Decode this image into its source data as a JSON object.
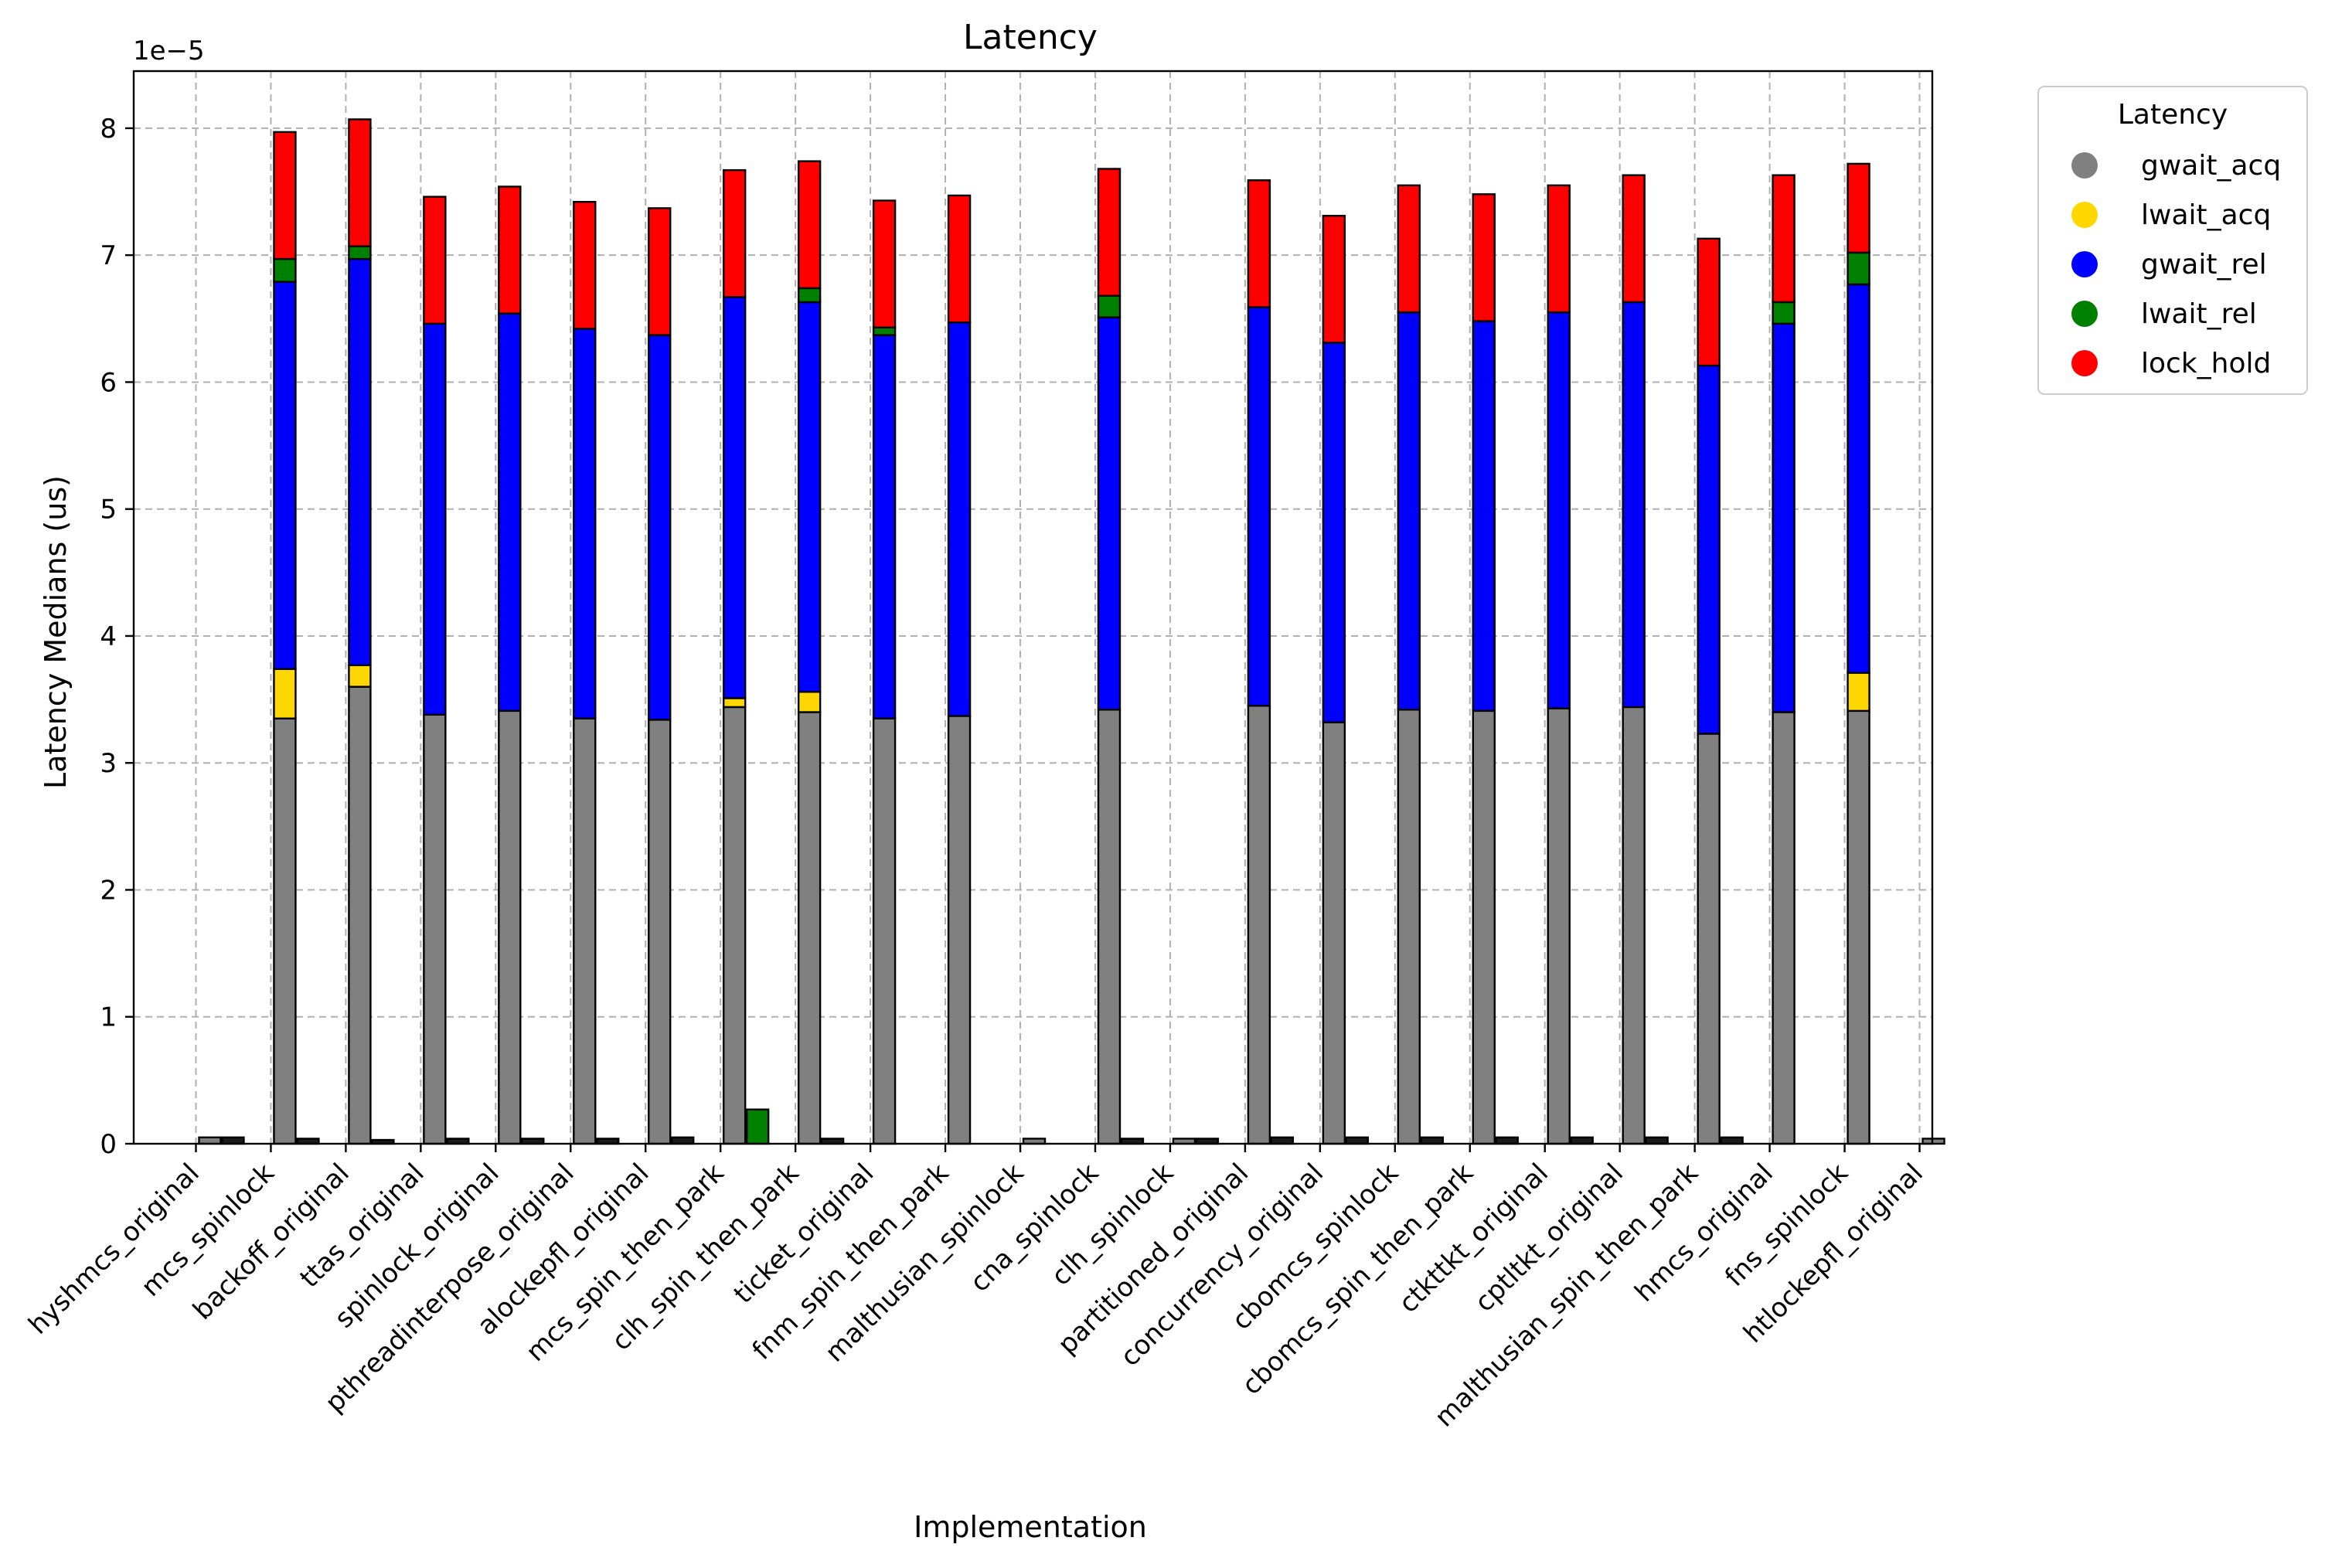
{
  "chart_data": {
    "type": "bar",
    "stacked": true,
    "title": "Latency",
    "xlabel": "Implementation",
    "ylabel": "Latency Medians (us)",
    "y_offset_text": "1e−5",
    "ylim": [
      0,
      8.45e-05
    ],
    "yticks": [
      0,
      1e-05,
      2e-05,
      3e-05,
      4e-05,
      5e-05,
      6e-05,
      7e-05,
      8e-05
    ],
    "ytick_labels": [
      "0",
      "1",
      "2",
      "3",
      "4",
      "5",
      "6",
      "7",
      "8"
    ],
    "grid": true,
    "legend": {
      "title": "Latency",
      "placement": "outside-top-right"
    },
    "categories": [
      "hyshmcs_original",
      "mcs_spinlock",
      "backoff_original",
      "ttas_original",
      "spinlock_original",
      "pthreadinterpose_original",
      "alockepfl_original",
      "mcs_spin_then_park",
      "clh_spin_then_park",
      "ticket_original",
      "fnm_spin_then_park",
      "malthusian_spinlock",
      "cna_spinlock",
      "clh_spinlock",
      "partitioned_original",
      "concurrency_original",
      "cbomcs_spinlock",
      "cbomcs_spin_then_park",
      "ctkttkt_original",
      "cptltkt_original",
      "malthusian_spin_then_park",
      "hmcs_original",
      "fns_spinlock",
      "htlockepfl_original"
    ],
    "series": [
      {
        "name": "gwait_acq",
        "color": "#808080",
        "values": [
          5e-07,
          3.35e-05,
          3.6e-05,
          3.38e-05,
          3.41e-05,
          3.35e-05,
          3.34e-05,
          3.44e-05,
          3.4e-05,
          3.35e-05,
          3.37e-05,
          4e-07,
          3.42e-05,
          4e-07,
          3.45e-05,
          3.32e-05,
          3.42e-05,
          3.41e-05,
          3.43e-05,
          3.44e-05,
          3.23e-05,
          3.4e-05,
          3.41e-05,
          4e-07
        ]
      },
      {
        "name": "lwait_acq",
        "color": "#FFD700",
        "values": [
          0,
          3.9e-06,
          1.7e-06,
          0,
          0,
          0,
          0,
          7e-07,
          1.6e-06,
          0,
          0,
          0,
          0,
          0,
          0,
          0,
          0,
          0,
          0,
          0,
          0,
          0,
          3e-06,
          0
        ]
      },
      {
        "name": "gwait_rel",
        "color": "#0000FF",
        "values": [
          0,
          3.05e-05,
          3.2e-05,
          3.08e-05,
          3.13e-05,
          3.07e-05,
          3.03e-05,
          3.16e-05,
          3.07e-05,
          3.02e-05,
          3.1e-05,
          0,
          3.09e-05,
          0,
          3.14e-05,
          2.99e-05,
          3.13e-05,
          3.07e-05,
          3.12e-05,
          3.19e-05,
          2.9e-05,
          3.06e-05,
          3.06e-05,
          0
        ]
      },
      {
        "name": "lwait_rel",
        "color": "#008000",
        "values": [
          0,
          1.8e-06,
          1e-06,
          0,
          0,
          0,
          0,
          0,
          1.1e-06,
          6e-07,
          0,
          0,
          1.7e-06,
          0,
          0,
          0,
          0,
          0,
          0,
          0,
          0,
          1.7e-06,
          2.5e-06,
          0
        ]
      },
      {
        "name": "lock_hold",
        "color": "#FF0000",
        "values": [
          0,
          1e-05,
          1e-05,
          1e-05,
          1e-05,
          1e-05,
          1e-05,
          1e-05,
          1e-05,
          1e-05,
          1e-05,
          0,
          1e-05,
          0,
          1e-05,
          1e-05,
          1e-05,
          1e-05,
          1e-05,
          1e-05,
          1e-05,
          1e-05,
          7e-06,
          0
        ]
      }
    ],
    "second_bar_group": {
      "categories": [
        "hyshmcs_original",
        "mcs_spinlock",
        "backoff_original",
        "ttas_original",
        "spinlock_original",
        "pthreadinterpose_original",
        "alockepfl_original",
        "mcs_spin_then_park",
        "clh_spin_then_park",
        "ticket_original",
        "fnm_spin_then_park",
        "malthusian_spinlock",
        "cna_spinlock",
        "clh_spinlock",
        "partitioned_original",
        "concurrency_original",
        "cbomcs_spinlock",
        "cbomcs_spin_then_park",
        "ctkttkt_original",
        "cptltkt_original",
        "malthusian_spin_then_park",
        "hmcs_original",
        "fns_spinlock",
        "htlockepfl_original"
      ],
      "series": [
        {
          "name": "",
          "color": "#1a1a1a",
          "values": [
            0,
            5e-07,
            4e-07,
            3e-07,
            4e-07,
            4e-07,
            4e-07,
            5e-07,
            0,
            4e-07,
            0,
            0,
            0,
            4e-07,
            4e-07,
            5e-07,
            5e-07,
            5e-07,
            5e-07,
            5e-07,
            5e-07,
            5e-07,
            0,
            0
          ]
        },
        {
          "name": "",
          "color": "#008000",
          "values": [
            0,
            0,
            0,
            0,
            0,
            0,
            0,
            0,
            2.7e-06,
            0,
            0,
            0,
            0,
            0,
            0,
            0,
            0,
            0,
            0,
            0,
            0,
            0,
            0,
            0
          ]
        }
      ]
    }
  }
}
